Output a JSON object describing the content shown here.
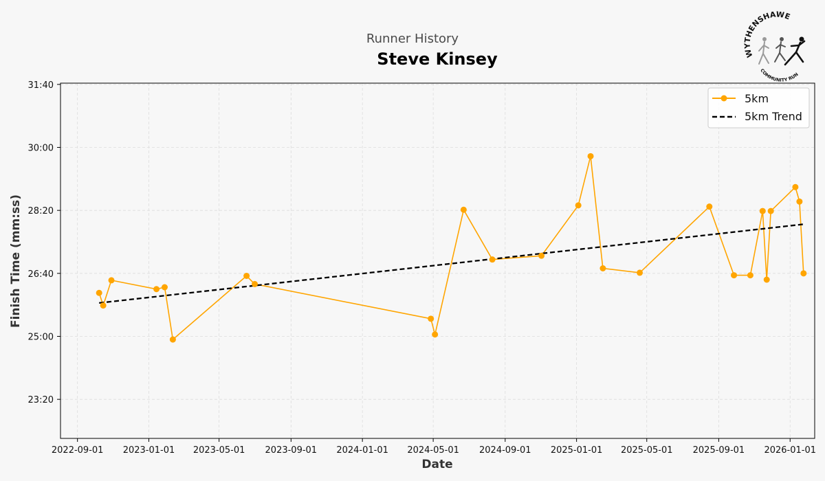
{
  "header": {
    "subtitle": "Runner History",
    "title": "Steve Kinsey"
  },
  "logo": {
    "top_text": "WYTHENSHAWE",
    "bottom_text": "COMMUNITY RUN"
  },
  "colors": {
    "series": "#ffa500",
    "trend": "#000000",
    "grid": "#dddddd",
    "background": "#f7f7f7"
  },
  "chart_data": {
    "type": "line",
    "title": "Steve Kinsey",
    "subtitle": "Runner History",
    "xlabel": "Date",
    "ylabel": "Finish Time (mm:ss)",
    "x_tick_labels": [
      "2022-09-01",
      "2023-01-01",
      "2023-05-01",
      "2023-09-01",
      "2024-01-01",
      "2024-05-01",
      "2024-09-01",
      "2025-01-01",
      "2025-05-01",
      "2025-09-01",
      "2026-01-01"
    ],
    "y_tick_labels": [
      "23:20",
      "25:00",
      "26:40",
      "28:20",
      "30:00",
      "31:40"
    ],
    "y_ticks": [
      "23:20",
      "25:00",
      "26:40",
      "28:20",
      "30:00",
      "31:40"
    ],
    "xlim": [
      "2022-08-03",
      "2026-02-12"
    ],
    "ylim": [
      "22:18",
      "31:42"
    ],
    "grid": true,
    "legend_position": "top-right",
    "series": [
      {
        "name": "5km",
        "marker": "circle",
        "x": [
          "2022-10-08",
          "2022-10-15",
          "2022-10-29",
          "2023-01-14",
          "2023-01-28",
          "2023-02-11",
          "2023-06-17",
          "2023-07-01",
          "2024-04-27",
          "2024-05-04",
          "2024-06-22",
          "2024-08-10",
          "2024-11-02",
          "2025-01-04",
          "2025-01-25",
          "2025-02-15",
          "2025-04-19",
          "2025-08-16",
          "2025-09-27",
          "2025-10-25",
          "2025-11-15",
          "2025-11-22",
          "2025-11-29",
          "2026-01-10",
          "2026-01-17",
          "2026-01-24"
        ],
        "y": [
          "26:09",
          "25:49",
          "26:29",
          "26:15",
          "26:18",
          "24:55",
          "26:36",
          "26:23",
          "25:28",
          "25:03",
          "28:21",
          "27:02",
          "27:08",
          "28:28",
          "29:46",
          "26:48",
          "26:41",
          "28:26",
          "26:37",
          "26:37",
          "28:19",
          "26:30",
          "28:19",
          "28:57",
          "28:34",
          "26:40"
        ]
      },
      {
        "name": "5km Trend",
        "style": "dashed",
        "x": [
          "2022-10-08",
          "2026-01-24"
        ],
        "y": [
          "25:53",
          "27:58"
        ]
      }
    ]
  }
}
